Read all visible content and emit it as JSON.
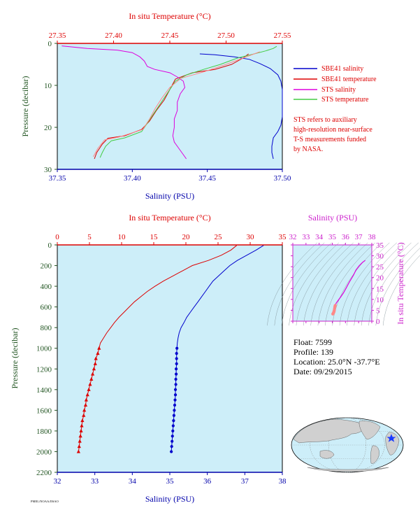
{
  "colors": {
    "panel_bg": "#cdeef9",
    "sbe_salinity": "#0000cc",
    "sbe_temperature": "#dd0000",
    "sts_salinity": "#dd00dd",
    "sts_temperature": "#44cc44",
    "sts_temp_pink": "#ff8888",
    "salinity_axis": "#0000aa",
    "temperature_axis": "#dd0000",
    "pressure_axis": "#225522",
    "ts_axis": "#cc22cc",
    "map_land": "#d0d0d0",
    "map_ocean": "#cdeef9"
  },
  "legend": {
    "items": [
      "SBE41 salinity",
      "SBE41 temperature",
      "STS salinity",
      "STS temperature"
    ],
    "note_lines": [
      "STS refers to auxiliary",
      "high-resolution near-surface",
      "T-S measurements funded",
      "by NASA."
    ]
  },
  "float_info": {
    "float": "Float: 7599",
    "profile": "Profile: 139",
    "location": "Location: 25.0°N -37.7°E",
    "date": "Date: 09/29/2015"
  },
  "footer_code": "PMEL/NOAA/JISAO",
  "chart_data": [
    {
      "id": "upper",
      "type": "line",
      "top_axis_label": "In situ Temperature (°C)",
      "bottom_axis_label": "Salinity (PSU)",
      "left_axis_label": "Pressure (decibar)",
      "temperature_ticks": [
        "27.35",
        "27.40",
        "27.45",
        "27.50",
        "27.55"
      ],
      "salinity_ticks": [
        "37.35",
        "37.40",
        "37.45",
        "37.50"
      ],
      "pressure_ticks": [
        "0",
        "10",
        "20",
        "30"
      ],
      "temperature_range": [
        27.35,
        27.55
      ],
      "salinity_range": [
        37.35,
        37.5
      ],
      "pressure_range": [
        0,
        30
      ],
      "series": [
        {
          "key": "sbe_salinity",
          "axis": "salinity",
          "points": [
            [
              37.445,
              2.5
            ],
            [
              37.455,
              2.7
            ],
            [
              37.468,
              3.2
            ],
            [
              37.478,
              3.8
            ],
            [
              37.485,
              4.8
            ],
            [
              37.492,
              6.0
            ],
            [
              37.497,
              7.5
            ],
            [
              37.499,
              9.0
            ],
            [
              37.5,
              11.0
            ],
            [
              37.5,
              13.5
            ],
            [
              37.5,
              15.5
            ],
            [
              37.5,
              17.5
            ],
            [
              37.499,
              19.5
            ],
            [
              37.497,
              21.0
            ],
            [
              37.494,
              22.5
            ],
            [
              37.493,
              24.5
            ],
            [
              37.493,
              26.0
            ],
            [
              37.494,
              27.5
            ]
          ]
        },
        {
          "key": "sbe_temperature",
          "axis": "temperature",
          "points": [
            [
              27.52,
              2.5
            ],
            [
              27.515,
              3.5
            ],
            [
              27.505,
              5.0
            ],
            [
              27.49,
              6.2
            ],
            [
              27.47,
              7.0
            ],
            [
              27.455,
              8.5
            ],
            [
              27.45,
              11.0
            ],
            [
              27.445,
              13.5
            ],
            [
              27.438,
              16.0
            ],
            [
              27.432,
              18.5
            ],
            [
              27.425,
              20.5
            ],
            [
              27.41,
              22.0
            ],
            [
              27.395,
              22.6
            ],
            [
              27.39,
              24.0
            ],
            [
              27.385,
              26.0
            ],
            [
              27.383,
              27.5
            ]
          ]
        },
        {
          "key": "sts_salinity",
          "axis": "salinity",
          "points": [
            [
              37.353,
              0.6
            ],
            [
              37.37,
              1.2
            ],
            [
              37.39,
              1.6
            ],
            [
              37.4,
              2.2
            ],
            [
              37.405,
              3.2
            ],
            [
              37.408,
              4.2
            ],
            [
              37.41,
              5.5
            ],
            [
              37.415,
              6.2
            ],
            [
              37.425,
              7.0
            ],
            [
              37.43,
              8.0
            ],
            [
              37.434,
              9.0
            ],
            [
              37.435,
              10.5
            ],
            [
              37.432,
              12.0
            ],
            [
              37.43,
              14.0
            ],
            [
              37.43,
              16.0
            ],
            [
              37.428,
              18.0
            ],
            [
              37.428,
              20.0
            ],
            [
              37.427,
              22.0
            ],
            [
              37.428,
              23.5
            ],
            [
              37.43,
              24.5
            ],
            [
              37.432,
              25.5
            ],
            [
              37.434,
              26.5
            ],
            [
              37.436,
              27.5
            ]
          ]
        },
        {
          "key": "sts_temperature",
          "axis": "temperature",
          "points": [
            [
              27.545,
              0.7
            ],
            [
              27.542,
              1.2
            ],
            [
              27.535,
              1.8
            ],
            [
              27.525,
              2.5
            ],
            [
              27.51,
              3.5
            ],
            [
              27.495,
              5.0
            ],
            [
              27.48,
              6.2
            ],
            [
              27.465,
              7.5
            ],
            [
              27.455,
              9.0
            ],
            [
              27.45,
              11.0
            ],
            [
              27.445,
              13.0
            ],
            [
              27.44,
              15.0
            ],
            [
              27.435,
              17.0
            ],
            [
              27.43,
              19.0
            ],
            [
              27.425,
              21.0
            ],
            [
              27.41,
              22.5
            ],
            [
              27.398,
              23.2
            ],
            [
              27.393,
              24.5
            ],
            [
              27.39,
              26.0
            ],
            [
              27.388,
              27.2
            ]
          ]
        },
        {
          "key": "sts_temp_pink",
          "axis": "temperature",
          "points": [
            [
              27.53,
              2.0
            ],
            [
              27.515,
              3.5
            ],
            [
              27.5,
              5.0
            ],
            [
              27.48,
              6.8
            ],
            [
              27.46,
              8.3
            ],
            [
              27.45,
              10.5
            ],
            [
              27.443,
              13.0
            ],
            [
              27.437,
              15.5
            ],
            [
              27.432,
              18.0
            ],
            [
              27.426,
              20.5
            ],
            [
              27.405,
              22.3
            ],
            [
              27.392,
              23.0
            ],
            [
              27.386,
              25.0
            ],
            [
              27.382,
              27.0
            ]
          ]
        }
      ]
    },
    {
      "id": "lower",
      "type": "line",
      "top_axis_label": "In situ Temperature (°C)",
      "bottom_axis_label": "Salinity (PSU)",
      "left_axis_label": "Pressure (decibar)",
      "temperature_ticks": [
        "0",
        "5",
        "10",
        "15",
        "20",
        "25",
        "30",
        "35"
      ],
      "salinity_ticks": [
        "32",
        "33",
        "34",
        "35",
        "36",
        "37",
        "38"
      ],
      "pressure_ticks": [
        "0",
        "200",
        "400",
        "600",
        "800",
        "1000",
        "1200",
        "1400",
        "1600",
        "1800",
        "2000",
        "2200"
      ],
      "temperature_range": [
        0,
        35
      ],
      "salinity_range": [
        32,
        38
      ],
      "pressure_range": [
        0,
        2200
      ],
      "series": [
        {
          "key": "sbe_temperature",
          "axis": "temperature",
          "markers": "triangle",
          "points": [
            [
              27.9,
              5
            ],
            [
              27.0,
              50
            ],
            [
              25.5,
              100
            ],
            [
              23.5,
              150
            ],
            [
              21.0,
              200
            ],
            [
              19.5,
              250
            ],
            [
              18.0,
              300
            ],
            [
              16.5,
              350
            ],
            [
              15.2,
              400
            ],
            [
              14.0,
              450
            ],
            [
              13.0,
              500
            ],
            [
              12.0,
              550
            ],
            [
              11.2,
              600
            ],
            [
              10.4,
              650
            ],
            [
              9.6,
              700
            ],
            [
              8.9,
              750
            ],
            [
              8.3,
              800
            ],
            [
              7.7,
              850
            ],
            [
              7.2,
              900
            ],
            [
              6.7,
              950
            ],
            [
              6.5,
              1000
            ],
            [
              6.3,
              1050
            ],
            [
              6.0,
              1100
            ],
            [
              5.9,
              1150
            ],
            [
              5.7,
              1200
            ],
            [
              5.5,
              1250
            ],
            [
              5.3,
              1300
            ],
            [
              5.1,
              1350
            ],
            [
              4.9,
              1400
            ],
            [
              4.7,
              1450
            ],
            [
              4.5,
              1500
            ],
            [
              4.4,
              1550
            ],
            [
              4.2,
              1600
            ],
            [
              4.1,
              1650
            ],
            [
              3.9,
              1700
            ],
            [
              3.8,
              1750
            ],
            [
              3.7,
              1800
            ],
            [
              3.6,
              1850
            ],
            [
              3.5,
              1900
            ],
            [
              3.4,
              1950
            ],
            [
              3.3,
              2000
            ]
          ]
        },
        {
          "key": "sbe_salinity",
          "axis": "salinity",
          "markers": "circle",
          "points": [
            [
              37.5,
              5
            ],
            [
              37.3,
              50
            ],
            [
              37.05,
              100
            ],
            [
              36.8,
              150
            ],
            [
              36.6,
              200
            ],
            [
              36.45,
              250
            ],
            [
              36.3,
              300
            ],
            [
              36.15,
              350
            ],
            [
              36.05,
              400
            ],
            [
              35.95,
              450
            ],
            [
              35.85,
              500
            ],
            [
              35.75,
              550
            ],
            [
              35.65,
              600
            ],
            [
              35.55,
              650
            ],
            [
              35.45,
              700
            ],
            [
              35.38,
              750
            ],
            [
              35.3,
              800
            ],
            [
              35.25,
              850
            ],
            [
              35.22,
              900
            ],
            [
              35.2,
              950
            ],
            [
              35.19,
              1000
            ],
            [
              35.18,
              1050
            ],
            [
              35.18,
              1100
            ],
            [
              35.18,
              1150
            ],
            [
              35.17,
              1200
            ],
            [
              35.17,
              1250
            ],
            [
              35.16,
              1300
            ],
            [
              35.16,
              1350
            ],
            [
              35.15,
              1400
            ],
            [
              35.15,
              1450
            ],
            [
              35.14,
              1500
            ],
            [
              35.13,
              1550
            ],
            [
              35.12,
              1600
            ],
            [
              35.11,
              1650
            ],
            [
              35.1,
              1700
            ],
            [
              35.09,
              1750
            ],
            [
              35.08,
              1800
            ],
            [
              35.07,
              1850
            ],
            [
              35.06,
              1900
            ],
            [
              35.05,
              1950
            ],
            [
              35.04,
              2000
            ]
          ]
        }
      ]
    },
    {
      "id": "ts",
      "type": "scatter",
      "top_axis_label": "Salinity (PSU)",
      "right_axis_label": "In situ Temperature (°C)",
      "salinity_ticks": [
        "32",
        "33",
        "34",
        "35",
        "36",
        "37",
        "38"
      ],
      "temperature_ticks": [
        "0",
        "5",
        "10",
        "15",
        "20",
        "25",
        "30",
        "35"
      ],
      "salinity_range": [
        32,
        38
      ],
      "temperature_range": [
        0,
        35
      ],
      "series": [
        {
          "key": "sts_salinity",
          "points": [
            [
              37.5,
              27.9
            ],
            [
              37.3,
              27.0
            ],
            [
              37.05,
              25.5
            ],
            [
              36.8,
              23.5
            ],
            [
              36.6,
              21.0
            ],
            [
              36.3,
              18.0
            ],
            [
              36.05,
              15.2
            ],
            [
              35.85,
              13.0
            ],
            [
              35.65,
              11.2
            ],
            [
              35.45,
              9.6
            ],
            [
              35.3,
              8.3
            ],
            [
              35.22,
              7.2
            ],
            [
              35.19,
              6.5
            ],
            [
              35.17,
              5.7
            ],
            [
              35.15,
              4.9
            ],
            [
              35.13,
              4.4
            ],
            [
              35.11,
              4.1
            ],
            [
              35.08,
              3.7
            ],
            [
              35.04,
              3.3
            ]
          ]
        }
      ]
    }
  ]
}
